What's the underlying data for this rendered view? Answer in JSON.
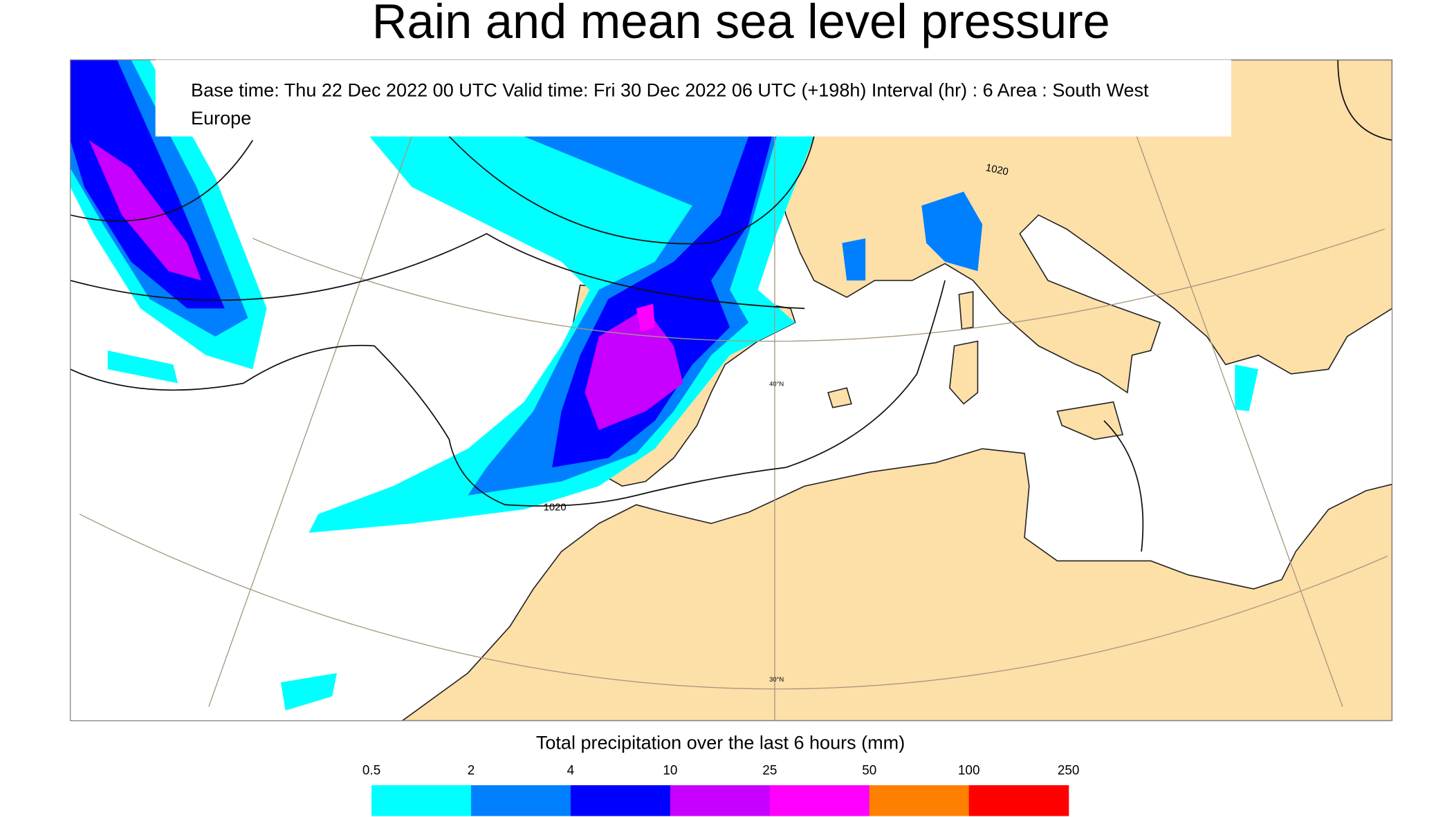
{
  "header": {
    "title": "Rain and mean sea level pressure"
  },
  "info": {
    "line1": "Base time: Thu 22 Dec 2022 00 UTC Valid time: Fri 30 Dec 2022 06 UTC (+198h) Interval (hr) : 6 Area : South West",
    "line2": "Europe"
  },
  "map": {
    "isobar_labels": [
      "1020",
      "1020"
    ],
    "latitude_labels": [
      "40°N",
      "30°N"
    ]
  },
  "legend": {
    "title": "Total precipitation over the last 6 hours (mm)",
    "levels": [
      0.5,
      2,
      4,
      10,
      25,
      50,
      100,
      250
    ],
    "colors": [
      "#00ffff",
      "#0080ff",
      "#0000ff",
      "#c800ff",
      "#ff00ff",
      "#ff8000",
      "#ff0000"
    ]
  }
}
